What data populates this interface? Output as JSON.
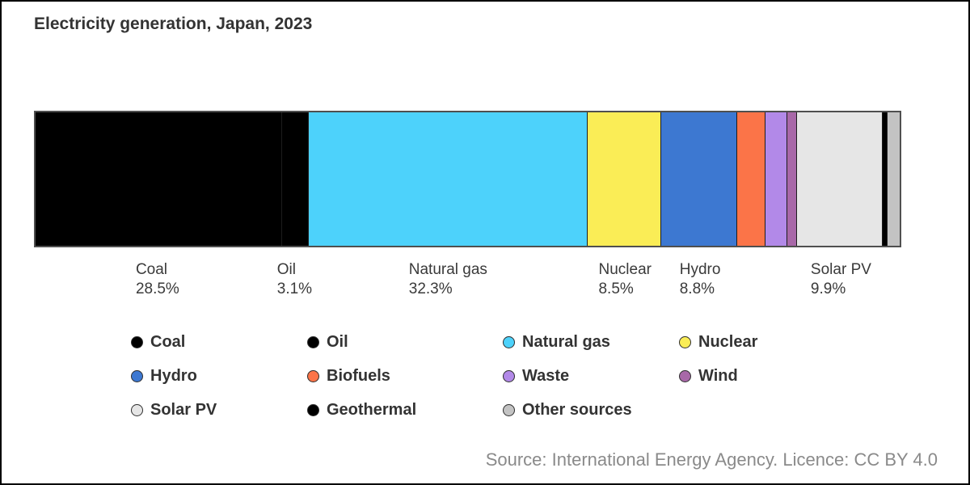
{
  "title": "Electricity generation, Japan, 2023",
  "source_note": "Source: International Energy Agency. Licence: CC BY 4.0",
  "chart_data": {
    "type": "bar",
    "subtype": "single-horizontal-stacked",
    "title": "Electricity generation, Japan, 2023",
    "unit": "%",
    "axis_range": [
      0,
      100
    ],
    "grid": false,
    "legend_position": "bottom",
    "series": [
      {
        "name": "Coal",
        "value": 28.5,
        "pct_text": "28.5%",
        "color": "#000000"
      },
      {
        "name": "Oil",
        "value": 3.1,
        "pct_text": "3.1%",
        "color": "#000000"
      },
      {
        "name": "Natural gas",
        "value": 32.3,
        "pct_text": "32.3%",
        "color": "#4dd2fb"
      },
      {
        "name": "Nuclear",
        "value": 8.5,
        "pct_text": "8.5%",
        "color": "#faed56"
      },
      {
        "name": "Hydro",
        "value": 8.8,
        "pct_text": "8.8%",
        "color": "#3d78d1"
      },
      {
        "name": "Biofuels",
        "value": 3.3,
        "pct_text": null,
        "color": "#fb7448"
      },
      {
        "name": "Waste",
        "value": 2.5,
        "pct_text": null,
        "color": "#b289e8"
      },
      {
        "name": "Wind",
        "value": 1.1,
        "pct_text": null,
        "color": "#a868a8"
      },
      {
        "name": "Solar PV",
        "value": 9.9,
        "pct_text": "9.9%",
        "color": "#e6e6e6"
      },
      {
        "name": "Geothermal",
        "value": 0.6,
        "pct_text": null,
        "color": "#000000"
      },
      {
        "name": "Other sources",
        "value": 1.4,
        "pct_text": null,
        "color": "#c3c3c3"
      }
    ]
  }
}
